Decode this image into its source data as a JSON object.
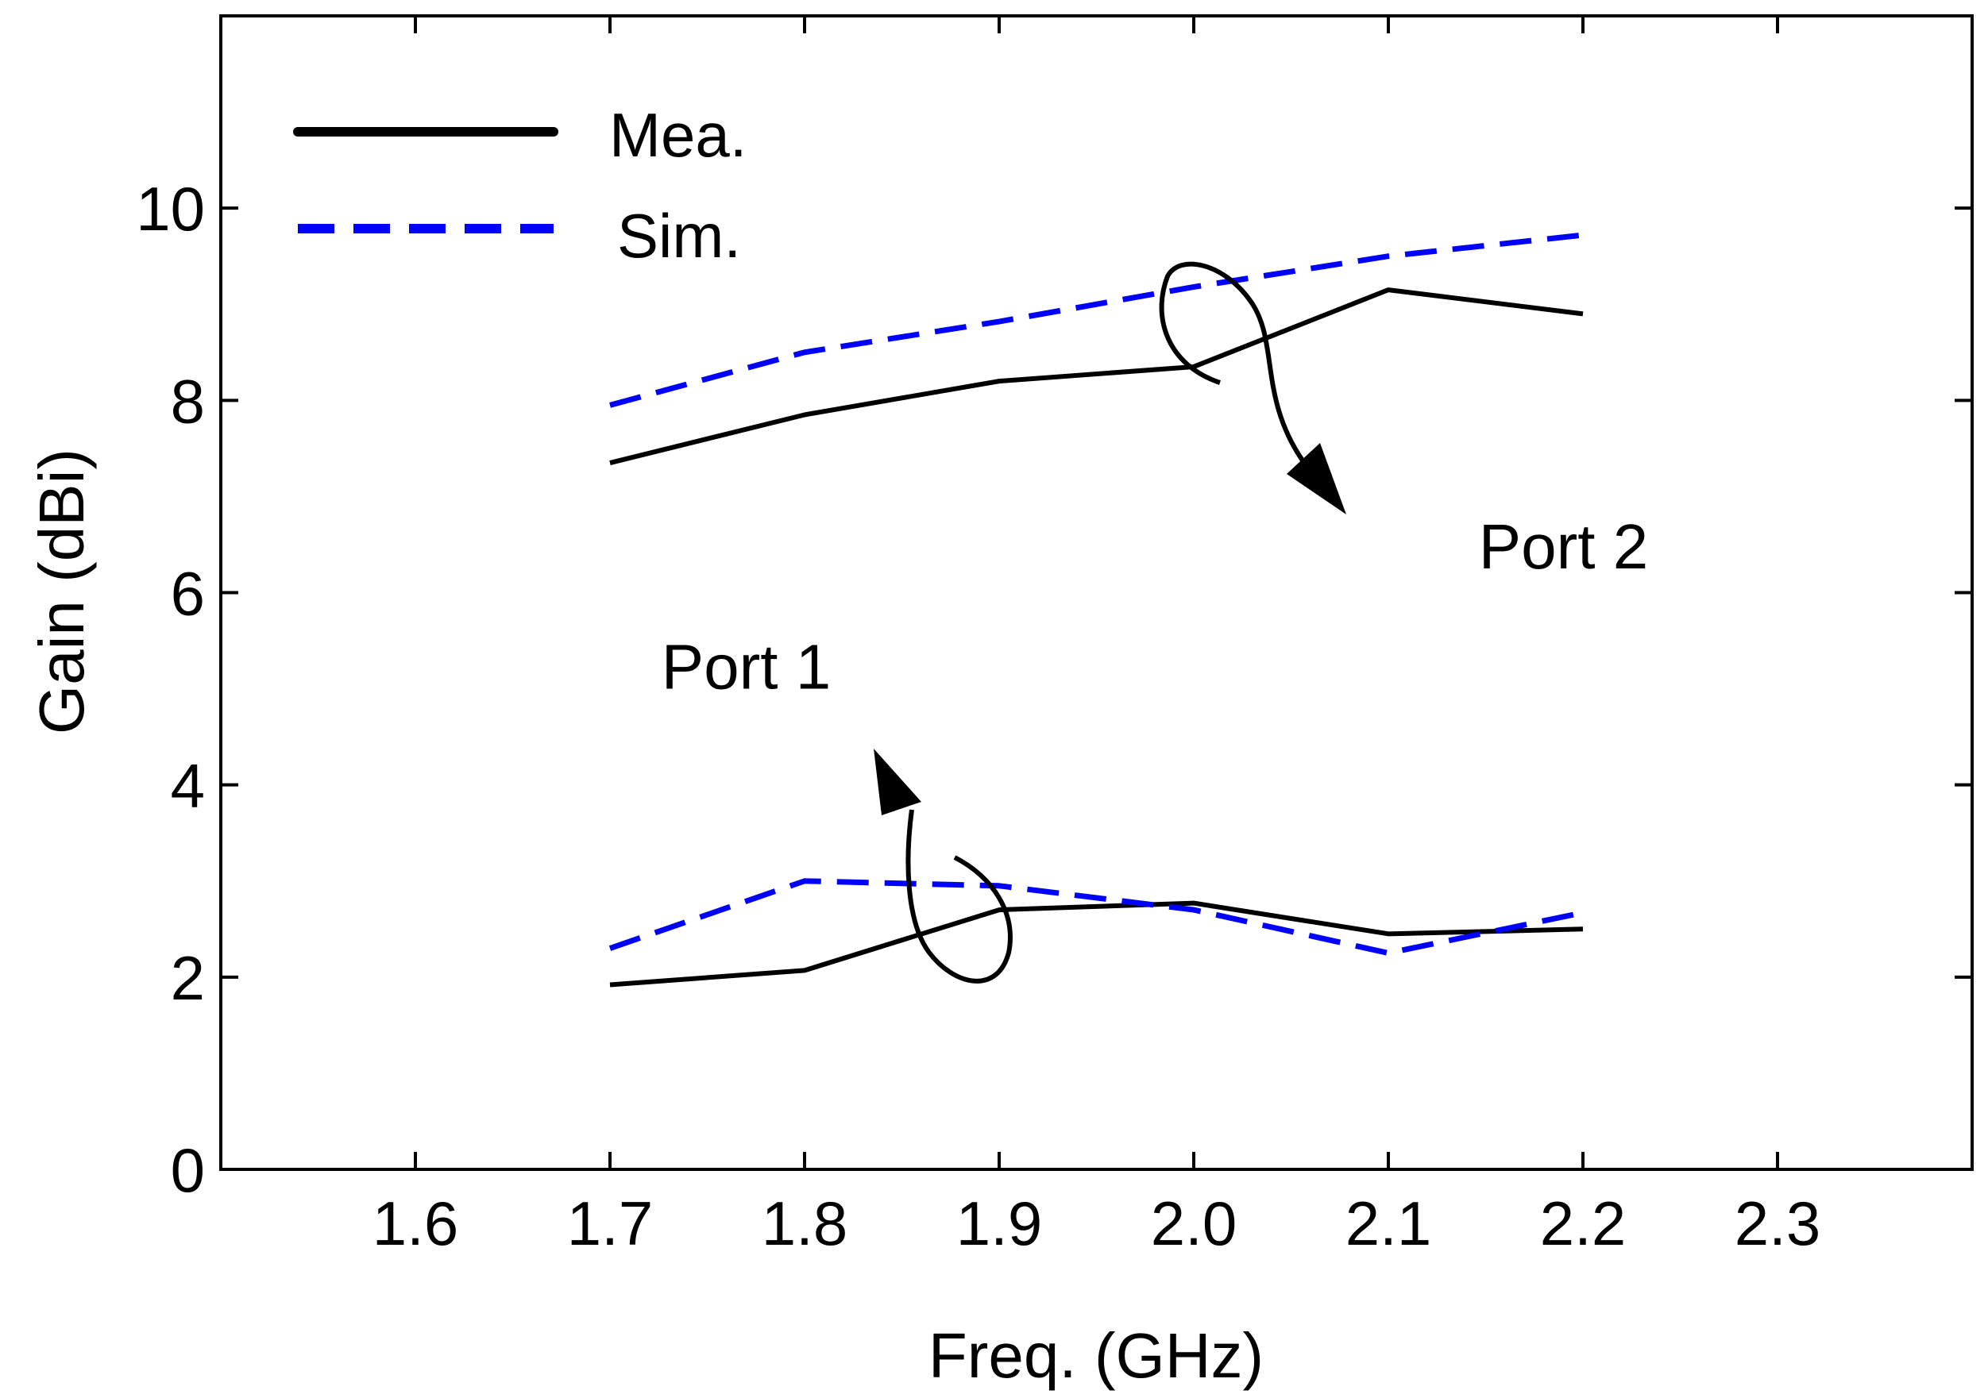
{
  "chart_data": {
    "type": "line",
    "xlabel": "Freq. (GHz)",
    "ylabel": "Gain (dBi)",
    "xlim": [
      1.5,
      2.4
    ],
    "ylim": [
      0,
      12
    ],
    "xticks": [
      "1.6",
      "1.7",
      "1.8",
      "1.9",
      "2.0",
      "2.1",
      "2.2",
      "2.3"
    ],
    "yticks": [
      "0",
      "2",
      "4",
      "6",
      "8",
      "10"
    ],
    "legend": {
      "position": "top-left",
      "entries": [
        "Mea.",
        "Sim."
      ]
    },
    "x": [
      1.7,
      1.8,
      1.9,
      2.0,
      2.1,
      2.2
    ],
    "series": [
      {
        "name": "Mea.",
        "group": "Port 2",
        "style": "solid",
        "color": "#000000",
        "values": [
          7.35,
          7.85,
          8.2,
          8.35,
          9.15,
          8.9
        ]
      },
      {
        "name": "Sim.",
        "group": "Port 2",
        "style": "dashed",
        "color": "#0000ff",
        "values": [
          7.95,
          8.5,
          8.82,
          9.18,
          9.5,
          9.72
        ]
      },
      {
        "name": "Mea.",
        "group": "Port 1",
        "style": "solid",
        "color": "#000000",
        "values": [
          1.92,
          2.07,
          2.7,
          2.77,
          2.45,
          2.5
        ]
      },
      {
        "name": "Sim.",
        "group": "Port 1",
        "style": "dashed",
        "color": "#0000ff",
        "values": [
          2.3,
          3.0,
          2.95,
          2.7,
          2.25,
          2.67
        ]
      }
    ],
    "annotations": [
      {
        "text": "Port 2",
        "x": 2.19,
        "y": 6.25
      },
      {
        "text": "Port 1",
        "x": 1.77,
        "y": 5.0
      }
    ]
  }
}
